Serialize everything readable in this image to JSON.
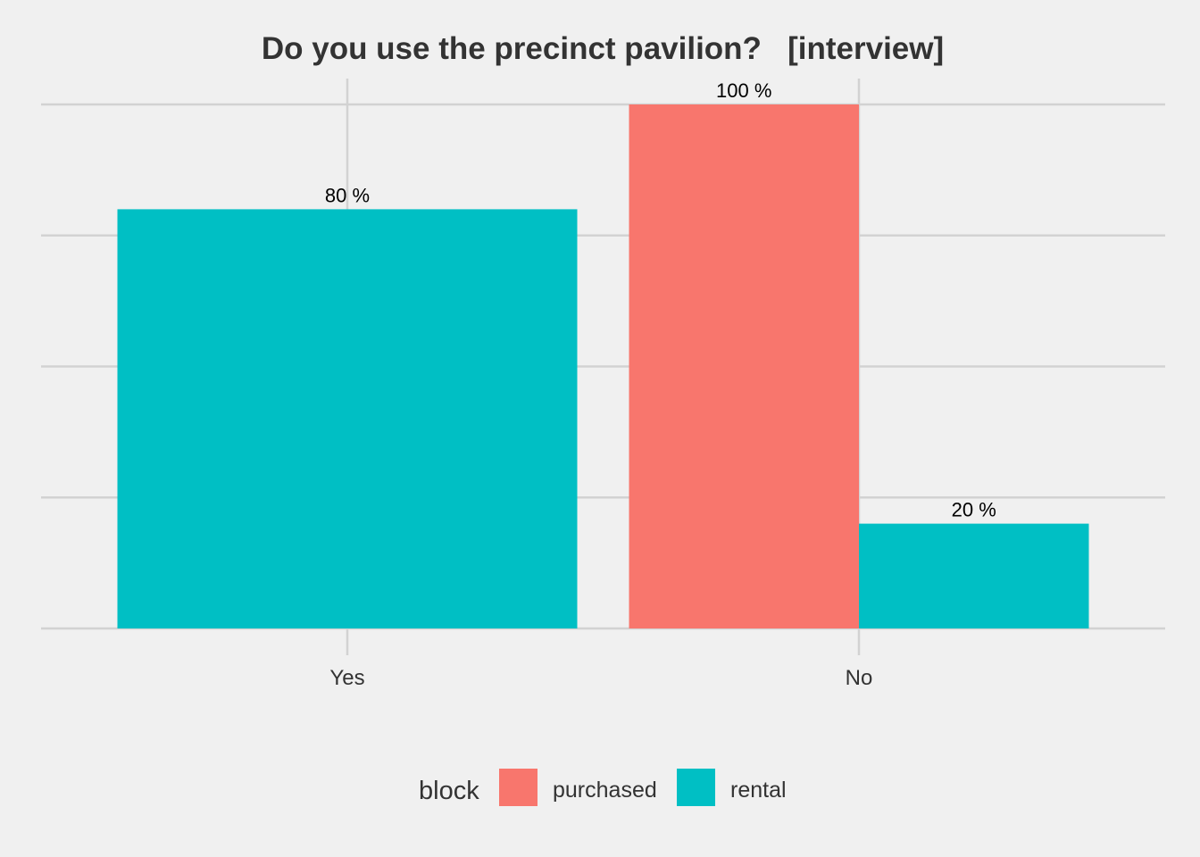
{
  "chart_data": {
    "type": "bar",
    "title": "Do you use the precinct pavilion?   [interview]",
    "xlabel": "",
    "ylabel": "",
    "categories": [
      "Yes",
      "No"
    ],
    "ylim": [
      0,
      100
    ],
    "grid": true,
    "legend_position": "bottom",
    "legend_title": "block",
    "series": [
      {
        "name": "purchased",
        "color": "#F8766D",
        "values": [
          null,
          100
        ],
        "labels": [
          "",
          "100 %"
        ]
      },
      {
        "name": "rental",
        "color": "#00BFC4",
        "values": [
          80,
          20
        ],
        "labels": [
          "80 %",
          "20 %"
        ]
      }
    ]
  }
}
